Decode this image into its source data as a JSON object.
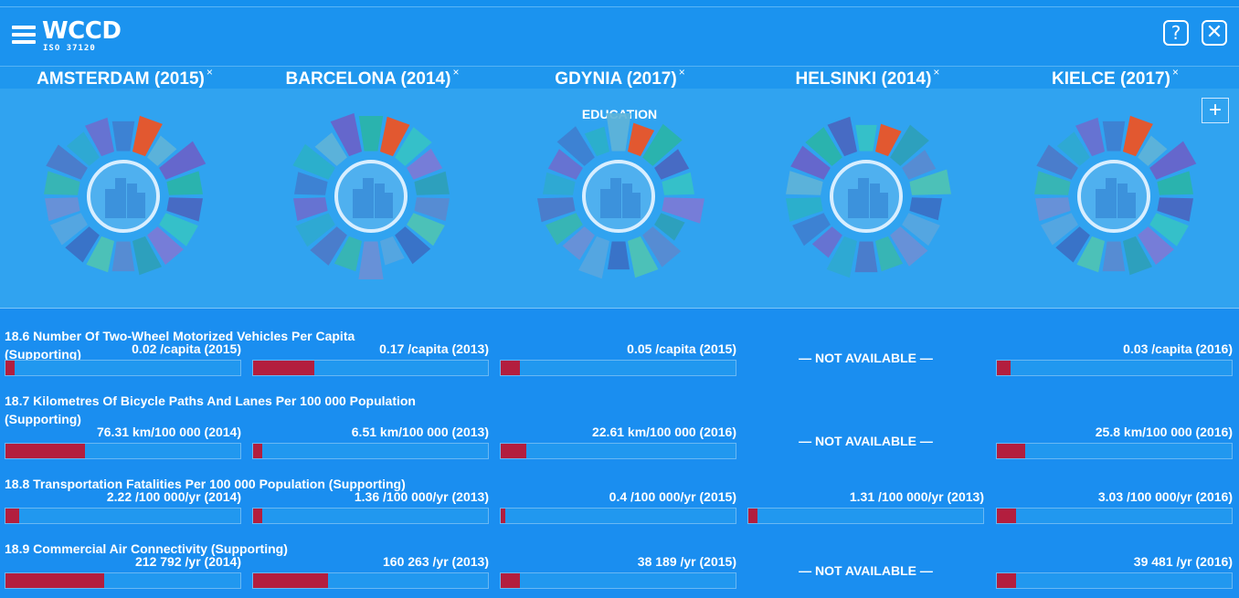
{
  "app": {
    "logo": "WCCD",
    "logo_sub": "ISO 37120"
  },
  "header": {
    "help_label": "?",
    "close_label": "✕"
  },
  "cities": [
    {
      "label": "AMSTERDAM (2015)",
      "remove": "×"
    },
    {
      "label": "BARCELONA (2014)",
      "remove": "×"
    },
    {
      "label": "GDYNIA (2017)",
      "remove": "×"
    },
    {
      "label": "HELSINKI (2014)",
      "remove": "×"
    },
    {
      "label": "KIELCE (2017)",
      "remove": "×"
    }
  ],
  "panel": {
    "active_theme": "EDUCATION",
    "add_label": "+"
  },
  "colors": {
    "accent": "#f2511f",
    "bar_fill": "#b31e3e",
    "background": "#1a8ef0"
  },
  "metrics": [
    {
      "title": "18.6 Number Of Two-Wheel Motorized Vehicles Per Capita (Supporting)",
      "cells": [
        {
          "value": "0.02 /capita (2015)",
          "fill": 0.04
        },
        {
          "value": "0.17 /capita (2013)",
          "fill": 0.26
        },
        {
          "value": "0.05 /capita (2015)",
          "fill": 0.08
        },
        {
          "value": "— NOT AVAILABLE —",
          "na": true
        },
        {
          "value": "0.03 /capita (2016)",
          "fill": 0.06
        }
      ]
    },
    {
      "title": "18.7 Kilometres Of Bicycle Paths And Lanes Per 100 000 Population (Supporting)",
      "cells": [
        {
          "value": "76.31 km/100 000 (2014)",
          "fill": 0.34
        },
        {
          "value": "6.51 km/100 000 (2013)",
          "fill": 0.04
        },
        {
          "value": "22.61 km/100 000 (2016)",
          "fill": 0.11
        },
        {
          "value": "— NOT AVAILABLE —",
          "na": true
        },
        {
          "value": "25.8 km/100 000 (2016)",
          "fill": 0.12
        }
      ]
    },
    {
      "title": "18.8 Transportation Fatalities Per 100 000 Population (Supporting)",
      "cells": [
        {
          "value": "2.22 /100 000/yr (2014)",
          "fill": 0.06
        },
        {
          "value": "1.36 /100 000/yr (2013)",
          "fill": 0.04
        },
        {
          "value": "0.4 /100 000/yr (2015)",
          "fill": 0.02
        },
        {
          "value": "1.31 /100 000/yr (2013)",
          "fill": 0.04
        },
        {
          "value": "3.03 /100 000/yr (2016)",
          "fill": 0.08
        }
      ]
    },
    {
      "title": "18.9 Commercial Air Connectivity (Supporting)",
      "cells": [
        {
          "value": "212 792 /yr (2014)",
          "fill": 0.42
        },
        {
          "value": "160 263 /yr (2013)",
          "fill": 0.32
        },
        {
          "value": "38 189 /yr (2015)",
          "fill": 0.08
        },
        {
          "value": "— NOT AVAILABLE —",
          "na": true
        },
        {
          "value": "39 481 /yr (2016)",
          "fill": 0.08
        }
      ]
    }
  ]
}
